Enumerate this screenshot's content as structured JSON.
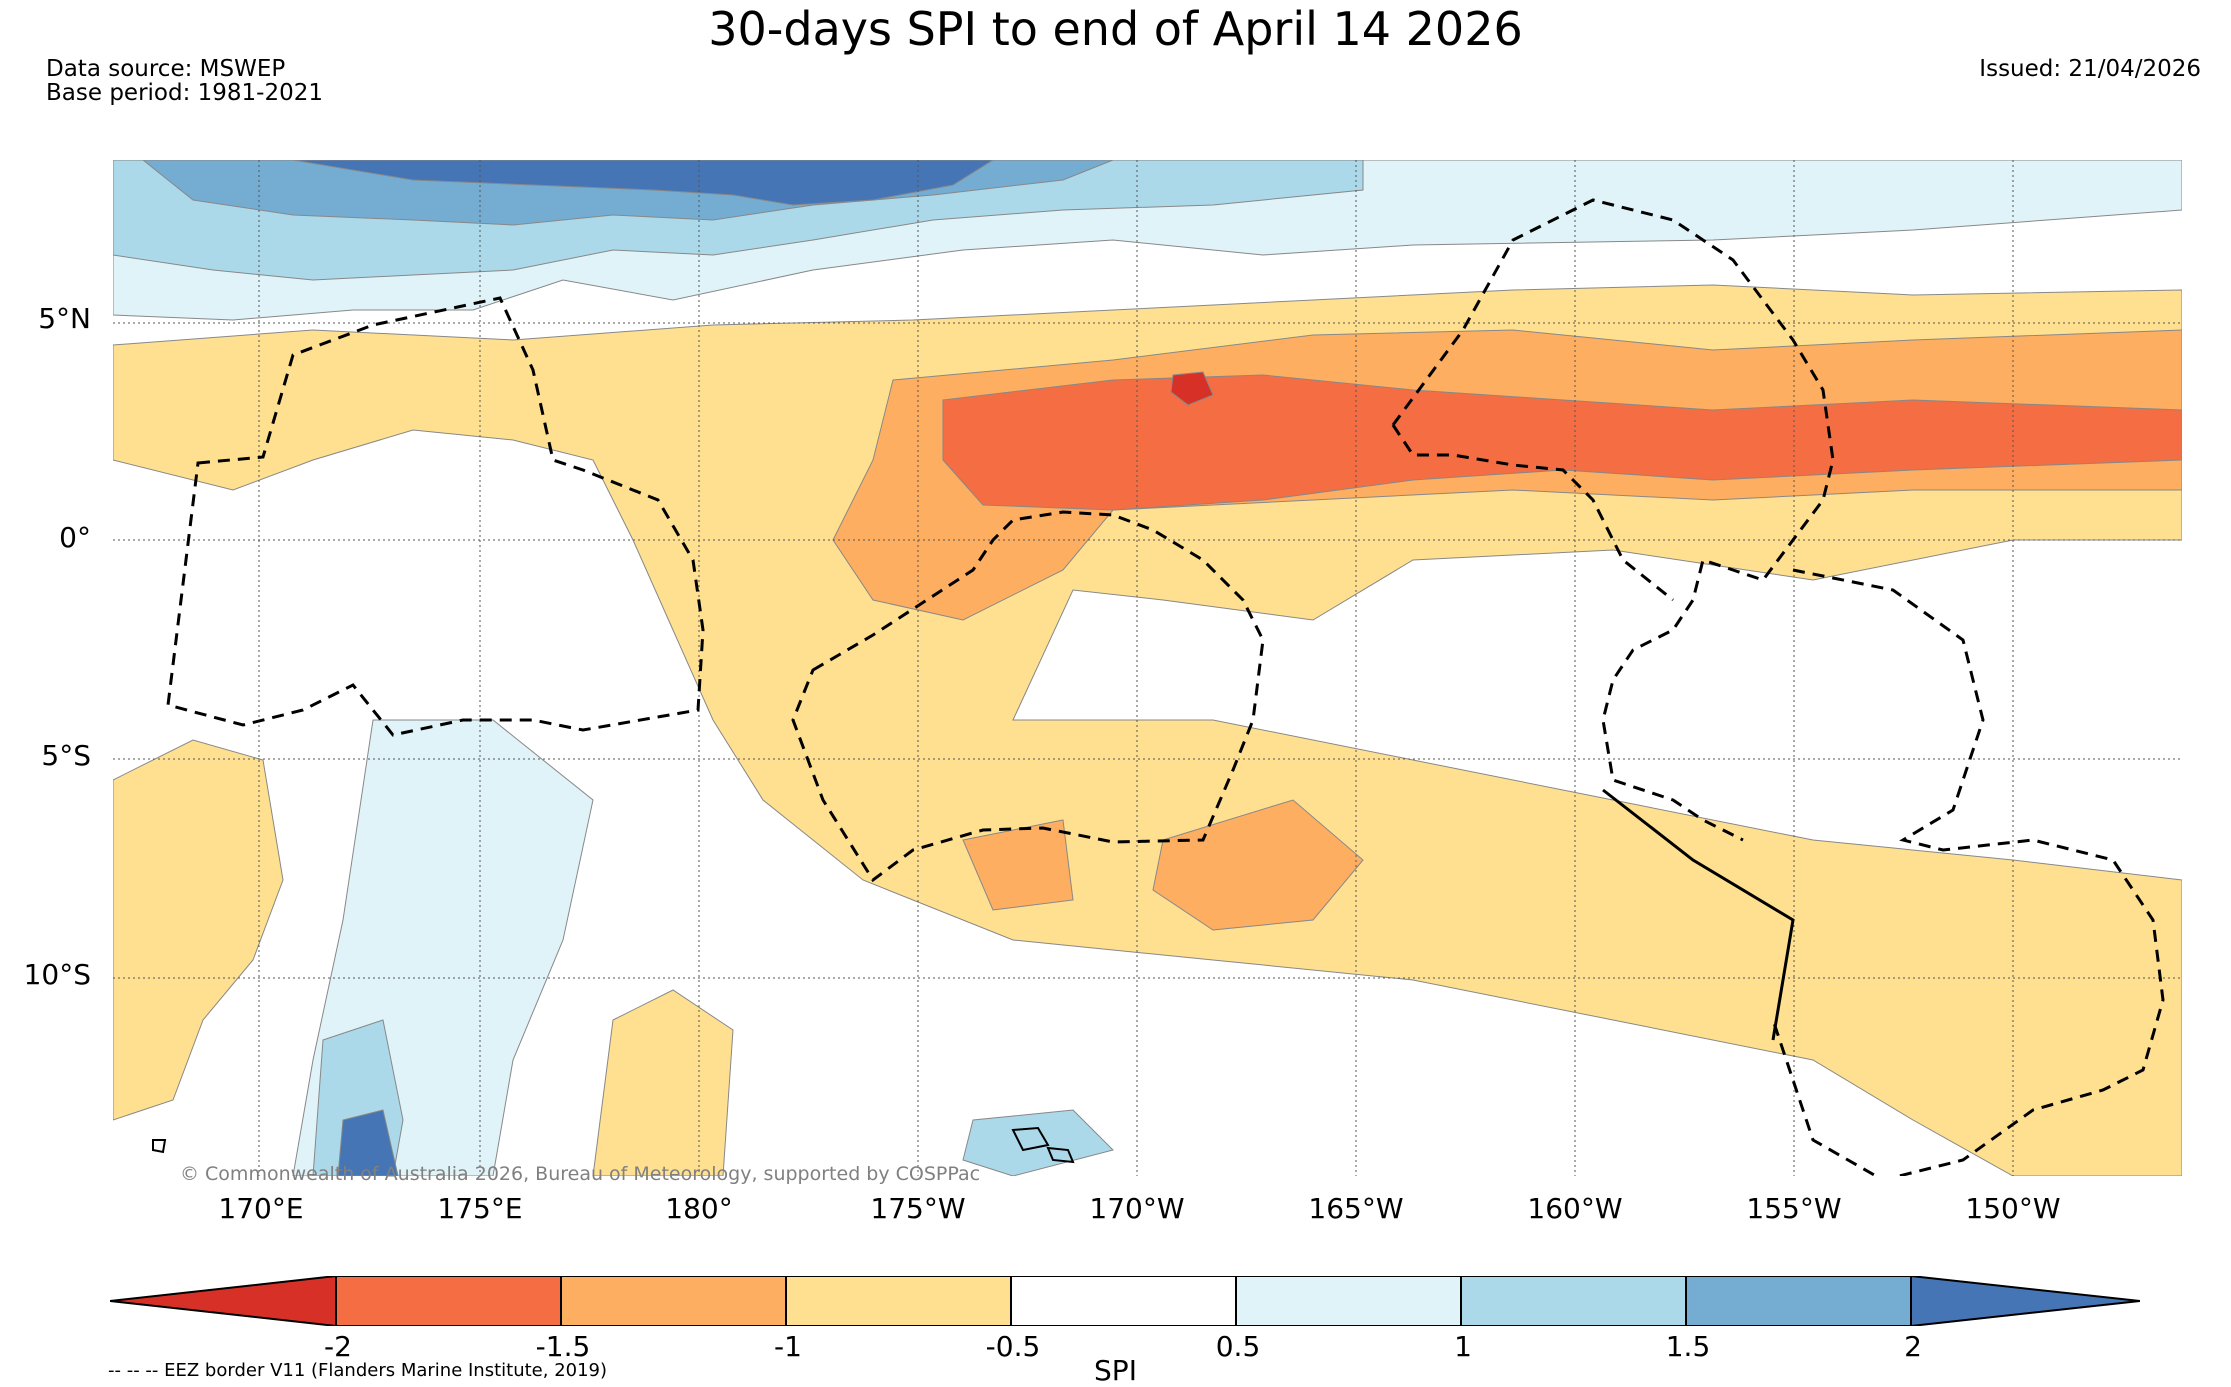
{
  "title": "30-days SPI to end of April 14 2026",
  "data_source": "Data source: MSWEP",
  "base_period": "Base period: 1981-2021",
  "issued": "Issued: 21/04/2026",
  "lat_labels": [
    "5°N",
    "0°",
    "5°S",
    "10°S"
  ],
  "lon_labels": [
    "170°E",
    "175°E",
    "180°",
    "175°W",
    "170°W",
    "165°W",
    "160°W",
    "155°W",
    "150°W"
  ],
  "copyright": "© Commonwealth of Australia 2026, Bureau of Meteorology, supported by COSPPac",
  "colorbar": {
    "ticks": [
      "-2",
      "-1.5",
      "-1",
      "-0.5",
      "0.5",
      "1",
      "1.5",
      "2"
    ],
    "label": "SPI",
    "colors": [
      "#d73027",
      "#f46d43",
      "#fdae61",
      "#fee090",
      "#ffffff",
      "#e0f3f8",
      "#abd9e9",
      "#74add1",
      "#4575b4"
    ]
  },
  "eez_note": "-- -- -- EEZ border V11 (Flanders Marine Institute, 2019)"
}
